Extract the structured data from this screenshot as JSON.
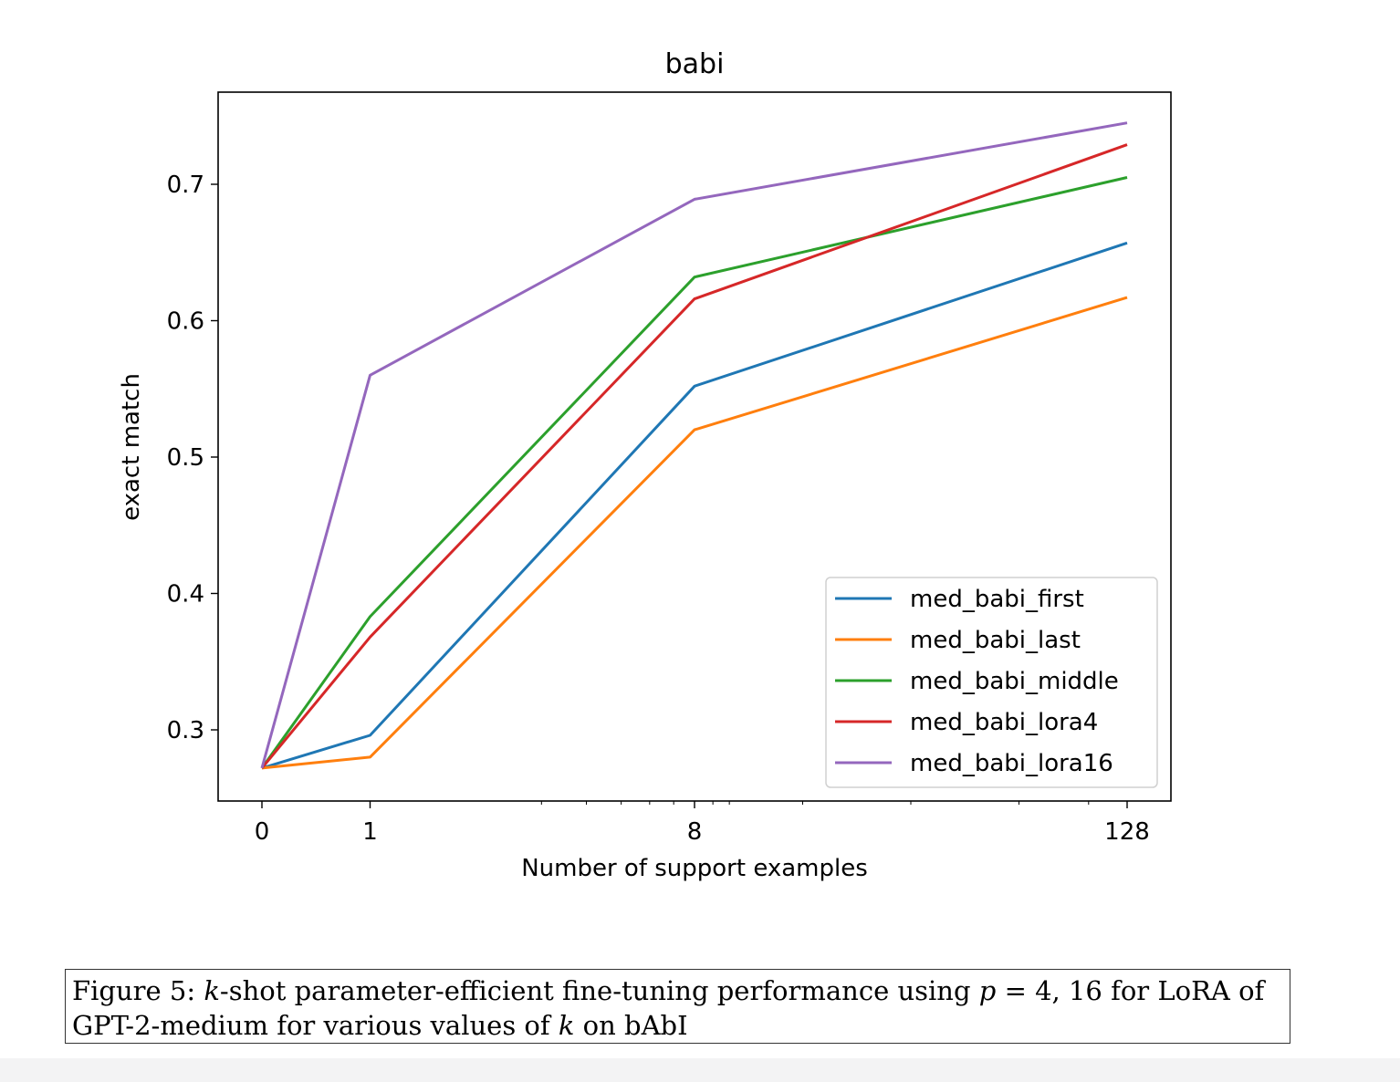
{
  "chart_data": {
    "type": "line",
    "title": "babi",
    "xlabel": "Number of support examples",
    "ylabel": "exact match",
    "x_scale": "symlog",
    "x": [
      0,
      1,
      8,
      128
    ],
    "x_tick_labels": [
      "0",
      "1",
      "8",
      "128"
    ],
    "ylim": [
      0.25,
      0.77
    ],
    "y_ticks": [
      0.3,
      0.4,
      0.5,
      0.6,
      0.7
    ],
    "y_tick_labels": [
      "0.3",
      "0.4",
      "0.5",
      "0.6",
      "0.7"
    ],
    "grid": false,
    "legend_position": "lower-right",
    "series": [
      {
        "name": "med_babi_first",
        "color": "#1f77b4",
        "values": [
          0.272,
          0.296,
          0.552,
          0.657
        ]
      },
      {
        "name": "med_babi_last",
        "color": "#ff7f0e",
        "values": [
          0.272,
          0.28,
          0.52,
          0.617
        ]
      },
      {
        "name": "med_babi_middle",
        "color": "#2ca02c",
        "values": [
          0.272,
          0.383,
          0.632,
          0.705
        ]
      },
      {
        "name": "med_babi_lora4",
        "color": "#d62728",
        "values": [
          0.272,
          0.368,
          0.616,
          0.729
        ]
      },
      {
        "name": "med_babi_lora16",
        "color": "#9467bd",
        "values": [
          0.272,
          0.56,
          0.689,
          0.745
        ]
      }
    ]
  },
  "caption": {
    "label": "Figure 5:",
    "k1": "k",
    "part1": "-shot parameter-efficient fine-tuning performance using",
    "p_var": "p",
    "eq": "= 4, 16",
    "part2": "for LoRA of GPT-2-medium for various values of",
    "k2": "k",
    "part3": "on bAbI"
  }
}
